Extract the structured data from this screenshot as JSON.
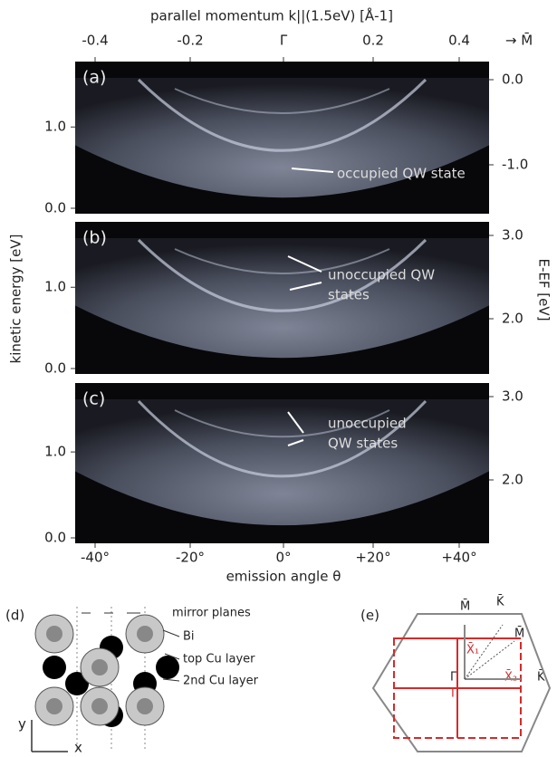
{
  "top_axis": {
    "label": "parallel momentum k||(1.5eV) [Å-1]",
    "ticks": [
      "-0.4",
      "-0.2",
      "Γ̄",
      "0.2",
      "0.4"
    ],
    "direction": "→ M̄"
  },
  "left_axis_label": "kinetic energy [eV]",
  "right_axis_label": "E-EF [eV]",
  "panels": [
    {
      "label": "(a)",
      "left_ticks": [
        "1.0",
        "0.0"
      ],
      "right_ticks": [
        "0.0",
        "-1.0"
      ],
      "annotation": [
        "occupied QW state"
      ]
    },
    {
      "label": "(b)",
      "left_ticks": [
        "1.0",
        "0.0"
      ],
      "right_ticks": [
        "3.0",
        "2.0"
      ],
      "annotation": [
        "unoccupied QW",
        "states"
      ]
    },
    {
      "label": "(c)",
      "left_ticks": [
        "1.0",
        "0.0"
      ],
      "right_ticks": [
        "3.0",
        "2.0"
      ],
      "annotation": [
        "unoccupied",
        "QW states"
      ]
    }
  ],
  "bottom_axis": {
    "label": "emission angle θ",
    "ticks": [
      "-40°",
      "-20°",
      "0°",
      "+20°",
      "+40°"
    ]
  },
  "diagram_d": {
    "label": "(d)",
    "mirror": "mirror planes",
    "bi": "Bi",
    "top_cu": "top Cu layer",
    "second_cu": "2nd Cu layer",
    "y": "y",
    "x": "x"
  },
  "diagram_e": {
    "label": "(e)",
    "m1": "M̄",
    "k1": "K̄",
    "m2": "M̄",
    "k2": "K̄",
    "gamma": "Γ̄",
    "x1": "X̄₁",
    "x2": "X̄₂",
    "gamma_red": "Γ̄"
  }
}
